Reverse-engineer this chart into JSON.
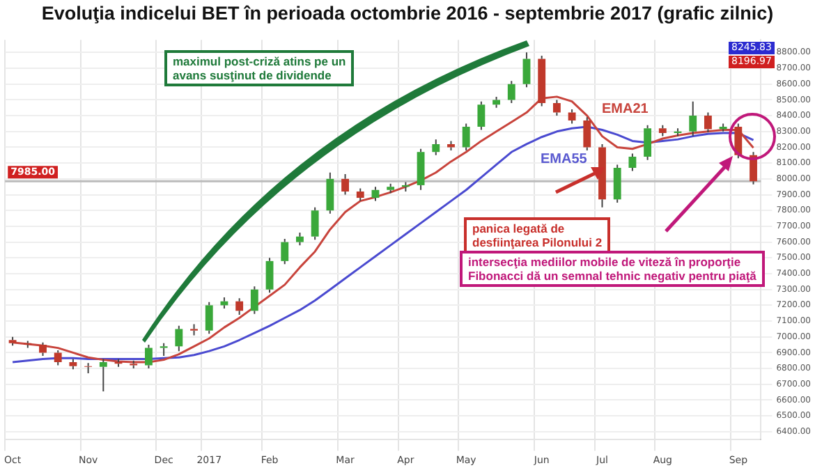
{
  "chart_data": {
    "type": "candlestick",
    "title": "Evoluţia indicelui BET în perioada octombrie 2016 - septembrie 2017 (grafic zilnic)",
    "categories": [
      "Oct",
      null,
      null,
      null,
      null,
      "Nov",
      null,
      null,
      null,
      null,
      "Dec",
      null,
      null,
      "2017",
      null,
      null,
      null,
      "Feb",
      null,
      null,
      null,
      null,
      "Mar",
      null,
      null,
      null,
      "Apr",
      null,
      null,
      null,
      "May",
      null,
      null,
      null,
      null,
      "Jun",
      null,
      null,
      null,
      "Jul",
      null,
      null,
      null,
      "Aug",
      null,
      null,
      null,
      null,
      "Sep",
      null
    ],
    "ohlc": [
      [
        6980,
        7000,
        6945,
        6960
      ],
      [
        6960,
        6975,
        6930,
        6950
      ],
      [
        6950,
        6965,
        6880,
        6900
      ],
      [
        6900,
        6915,
        6820,
        6840
      ],
      [
        6840,
        6860,
        6795,
        6815
      ],
      [
        6815,
        6835,
        6770,
        6810
      ],
      [
        6810,
        6860,
        6655,
        6840
      ],
      [
        6840,
        6860,
        6810,
        6830
      ],
      [
        6830,
        6850,
        6800,
        6820
      ],
      [
        6820,
        6950,
        6800,
        6930
      ],
      [
        6930,
        6960,
        6880,
        6940
      ],
      [
        6940,
        7070,
        6910,
        7050
      ],
      [
        7050,
        7080,
        7010,
        7040
      ],
      [
        7040,
        7220,
        7020,
        7200
      ],
      [
        7200,
        7250,
        7180,
        7225
      ],
      [
        7225,
        7245,
        7140,
        7165
      ],
      [
        7165,
        7320,
        7145,
        7300
      ],
      [
        7300,
        7500,
        7280,
        7480
      ],
      [
        7480,
        7620,
        7460,
        7600
      ],
      [
        7600,
        7660,
        7580,
        7635
      ],
      [
        7635,
        7820,
        7615,
        7800
      ],
      [
        7800,
        8040,
        7780,
        8000
      ],
      [
        8000,
        8030,
        7900,
        7920
      ],
      [
        7920,
        7940,
        7860,
        7880
      ],
      [
        7880,
        7950,
        7860,
        7930
      ],
      [
        7930,
        7970,
        7910,
        7950
      ],
      [
        7950,
        7980,
        7920,
        7960
      ],
      [
        7960,
        8190,
        7930,
        8170
      ],
      [
        8170,
        8250,
        8150,
        8220
      ],
      [
        8220,
        8240,
        8180,
        8200
      ],
      [
        8200,
        8350,
        8180,
        8330
      ],
      [
        8330,
        8490,
        8310,
        8470
      ],
      [
        8470,
        8520,
        8450,
        8500
      ],
      [
        8500,
        8620,
        8480,
        8600
      ],
      [
        8600,
        8800,
        8580,
        8760
      ],
      [
        8760,
        8780,
        8460,
        8480
      ],
      [
        8480,
        8500,
        8400,
        8420
      ],
      [
        8420,
        8440,
        8350,
        8370
      ],
      [
        8370,
        8390,
        8180,
        8200
      ],
      [
        8200,
        8220,
        7820,
        7870
      ],
      [
        7870,
        8090,
        7850,
        8070
      ],
      [
        8070,
        8160,
        8050,
        8140
      ],
      [
        8140,
        8340,
        8120,
        8320
      ],
      [
        8320,
        8340,
        8270,
        8290
      ],
      [
        8290,
        8320,
        8270,
        8300
      ],
      [
        8300,
        8490,
        8270,
        8400
      ],
      [
        8400,
        8420,
        8295,
        8315
      ],
      [
        8315,
        8350,
        8300,
        8330
      ],
      [
        8330,
        8350,
        8130,
        8150
      ],
      [
        8150,
        8170,
        7965,
        7985
      ]
    ],
    "colors": [
      "#c0392b",
      "#c0392b",
      "#c0392b",
      "#c0392b",
      "#c0392b",
      "#c0392b",
      "#3aa83a",
      "#c0392b",
      "#c0392b",
      "#3aa83a",
      "#3aa83a",
      "#3aa83a",
      "#c0392b",
      "#3aa83a",
      "#3aa83a",
      "#c0392b",
      "#3aa83a",
      "#3aa83a",
      "#3aa83a",
      "#3aa83a",
      "#3aa83a",
      "#3aa83a",
      "#c0392b",
      "#c0392b",
      "#3aa83a",
      "#3aa83a",
      "#3aa83a",
      "#3aa83a",
      "#3aa83a",
      "#c0392b",
      "#3aa83a",
      "#3aa83a",
      "#3aa83a",
      "#3aa83a",
      "#3aa83a",
      "#c0392b",
      "#c0392b",
      "#c0392b",
      "#c0392b",
      "#c0392b",
      "#3aa83a",
      "#3aa83a",
      "#3aa83a",
      "#c0392b",
      "#3aa83a",
      "#3aa83a",
      "#c0392b",
      "#3aa83a",
      "#c0392b",
      "#c0392b"
    ],
    "series": [
      {
        "type": "line",
        "color": "#c8443c",
        "values": [
          6965,
          6955,
          6945,
          6930,
          6900,
          6870,
          6855,
          6845,
          6840,
          6840,
          6855,
          6890,
          6940,
          6990,
          7060,
          7120,
          7190,
          7260,
          7330,
          7440,
          7540,
          7680,
          7790,
          7860,
          7885,
          7915,
          7950,
          7990,
          8040,
          8110,
          8170,
          8240,
          8300,
          8360,
          8420,
          8510,
          8520,
          8490,
          8400,
          8270,
          8200,
          8190,
          8220,
          8255,
          8275,
          8290,
          8300,
          8310,
          8310,
          8197
        ]
      },
      {
        "type": "line",
        "color": "#4a4ad0",
        "values": [
          6840,
          6850,
          6860,
          6865,
          6865,
          6860,
          6860,
          6860,
          6860,
          6860,
          6865,
          6870,
          6885,
          6910,
          6940,
          6980,
          7025,
          7070,
          7120,
          7170,
          7230,
          7300,
          7370,
          7440,
          7510,
          7580,
          7650,
          7720,
          7790,
          7860,
          7930,
          8010,
          8090,
          8170,
          8220,
          8265,
          8300,
          8320,
          8330,
          8310,
          8280,
          8240,
          8230,
          8240,
          8250,
          8270,
          8285,
          8290,
          8290,
          8246
        ]
      }
    ],
    "ylim": [
      6350,
      8880
    ],
    "yticks": [
      {
        "value": 6400,
        "label": "6400.00"
      },
      {
        "value": 6500,
        "label": "6500.00"
      },
      {
        "value": 6600,
        "label": "6600.00"
      },
      {
        "value": 6700,
        "label": "6700.00"
      },
      {
        "value": 6800,
        "label": "6800.00"
      },
      {
        "value": 6900,
        "label": "6900.00"
      },
      {
        "value": 7000,
        "label": "7000.00"
      },
      {
        "value": 7100,
        "label": "7100.00"
      },
      {
        "value": 7200,
        "label": "7200.00"
      },
      {
        "value": 7300,
        "label": "7300.00"
      },
      {
        "value": 7400,
        "label": "7400.00"
      },
      {
        "value": 7500,
        "label": "7500.00"
      },
      {
        "value": 7600,
        "label": "7600.00"
      },
      {
        "value": 7700,
        "label": "7700.00"
      },
      {
        "value": 7800,
        "label": "7800.00"
      },
      {
        "value": 7900,
        "label": "7900.00"
      },
      {
        "value": 8000,
        "label": "8000.00"
      },
      {
        "value": 8100,
        "label": "8100.00"
      },
      {
        "value": 8200,
        "label": "8200.00"
      },
      {
        "value": 8300,
        "label": "8300.00"
      },
      {
        "value": 8400,
        "label": "8400.00"
      },
      {
        "value": 8500,
        "label": "8500.00"
      },
      {
        "value": 8600,
        "label": "8600.00"
      },
      {
        "value": 8700,
        "label": "8700.00"
      },
      {
        "value": 8800,
        "label": "8800.00"
      }
    ],
    "grid": true,
    "ref_lines": [
      {
        "axis": "y",
        "value": 7985,
        "label": "7985.00",
        "color": "#bbbbbb"
      }
    ],
    "annotations": [
      "maximul post-criză atins pe un\navans susţinut de dividende",
      "panica legată de\ndesfiinţarea Pilonului 2",
      "intersecţia mediilor mobile de viteză în proporţie\nFibonacci dă un semnal tehnic negativ pentru piaţă",
      "EMA21",
      "EMA55",
      "8245.83",
      "8196.97"
    ]
  }
}
